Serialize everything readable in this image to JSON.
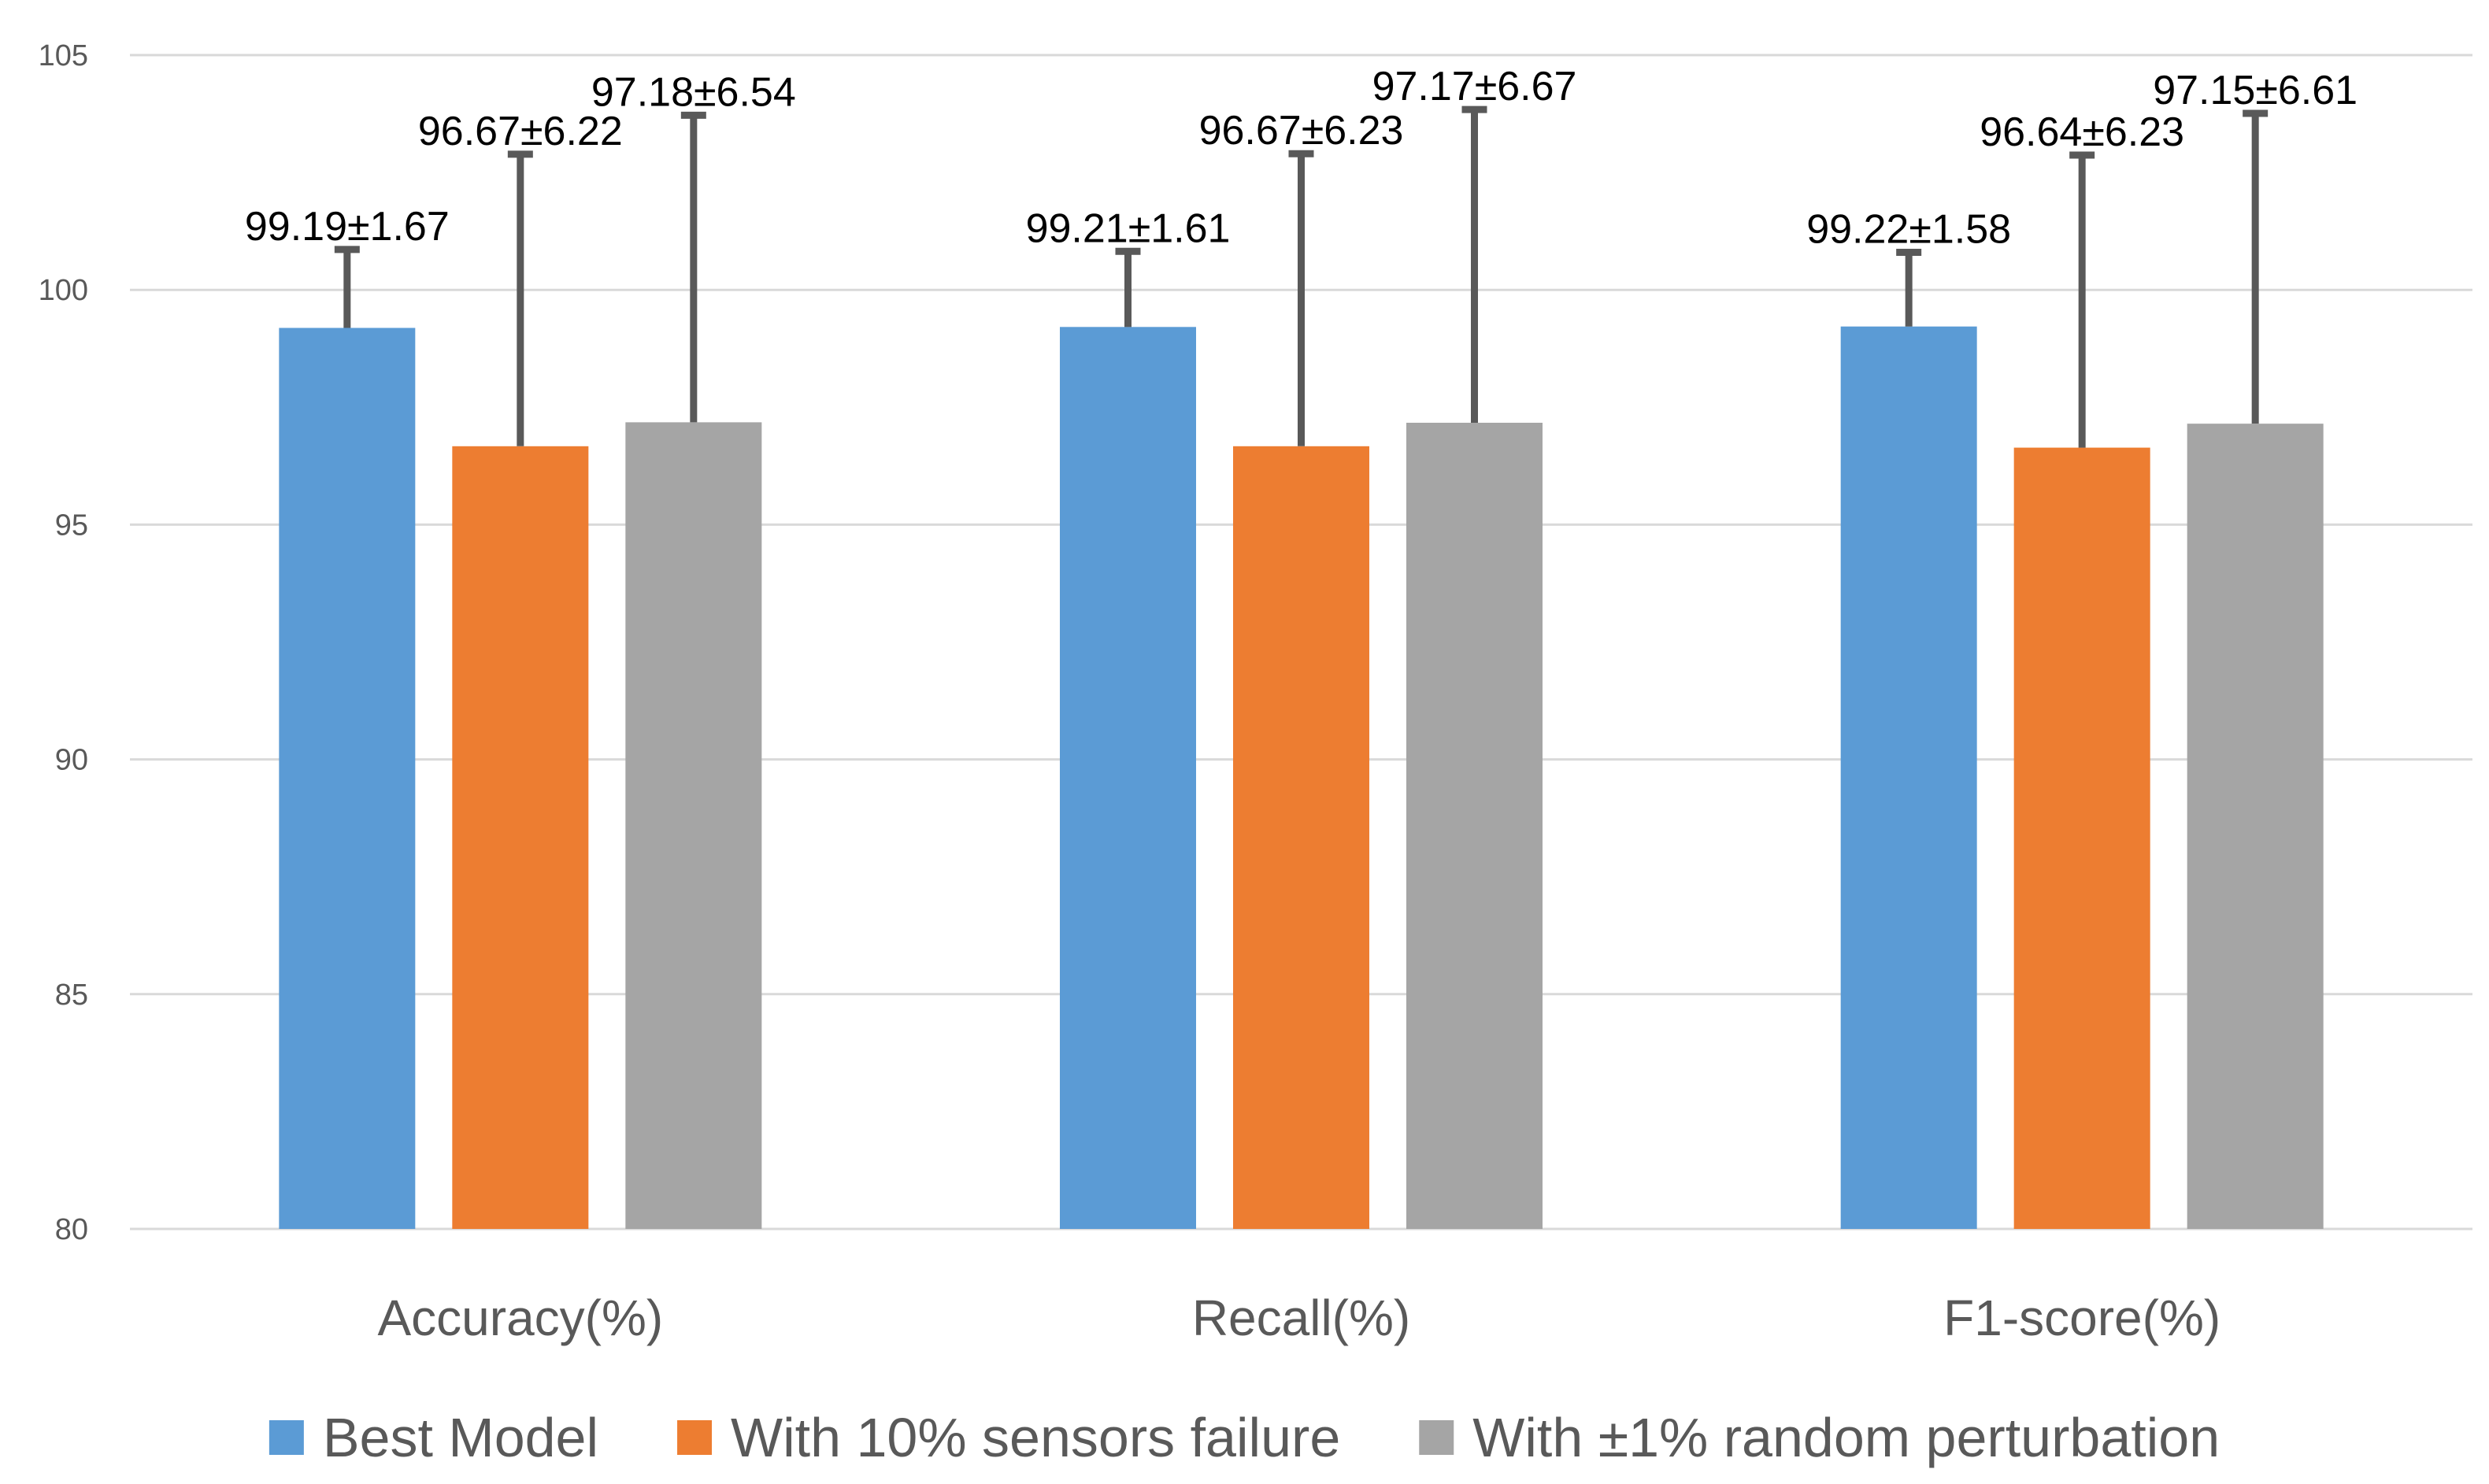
{
  "chart_data": {
    "type": "bar",
    "title": "",
    "xlabel": "",
    "ylabel": "",
    "ylim": [
      80,
      105
    ],
    "yticks": [
      80,
      85,
      90,
      95,
      100,
      105
    ],
    "grid": true,
    "legend_position": "bottom",
    "categories": [
      "Accuracy(%)",
      "Recall(%)",
      "F1-score(%)"
    ],
    "series": [
      {
        "name": "Best Model",
        "color": "#5b9bd5",
        "values": [
          99.19,
          99.21,
          99.22
        ],
        "errors": [
          1.67,
          1.61,
          1.58
        ],
        "labels": [
          "99.19±1.67",
          "99.21±1.61",
          "99.22±1.58"
        ]
      },
      {
        "name": "With 10% sensors failure",
        "color": "#ed7d31",
        "values": [
          96.67,
          96.67,
          96.64
        ],
        "errors": [
          6.22,
          6.23,
          6.23
        ],
        "labels": [
          "96.67±6.22",
          "96.67±6.23",
          "96.64±6.23"
        ]
      },
      {
        "name": "With ±1% random perturbation",
        "color": "#a5a5a5",
        "values": [
          97.18,
          97.17,
          97.15
        ],
        "errors": [
          6.54,
          6.67,
          6.61
        ],
        "labels": [
          "97.18±6.54",
          "97.17±6.67",
          "97.15±6.61"
        ]
      }
    ]
  }
}
